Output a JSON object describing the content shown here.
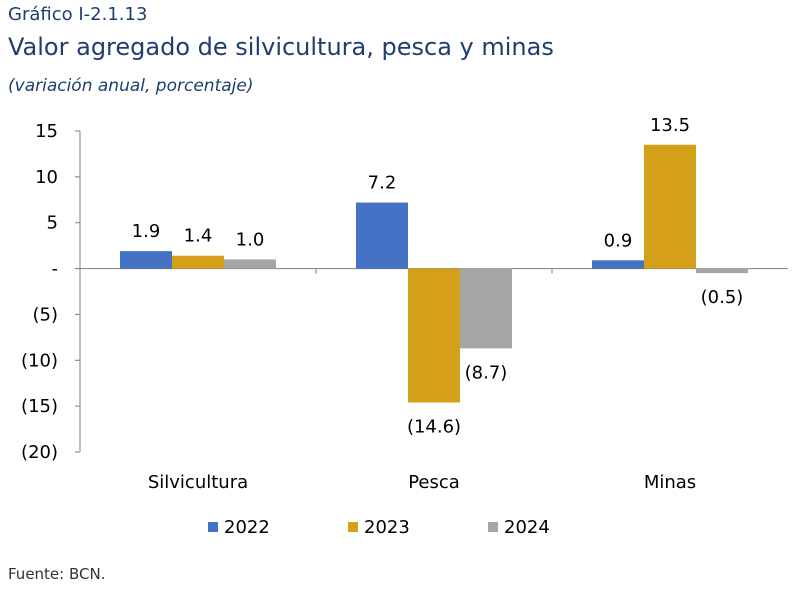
{
  "header": {
    "number": "Gráfico I-2.1.13",
    "title": "Valor agregado de silvicultura, pesca y minas",
    "subtitle": "(variación anual, porcentaje)"
  },
  "footer": {
    "source": "Fuente: BCN."
  },
  "chart_data": {
    "type": "bar",
    "title": "Valor agregado de silvicultura, pesca y minas",
    "subtitle": "(variación anual, porcentaje)",
    "categories": [
      "Silvicultura",
      "Pesca",
      "Minas"
    ],
    "series": [
      {
        "name": "2022",
        "values": [
          1.9,
          7.2,
          0.9
        ],
        "labels": [
          "1.9",
          "7.2",
          "0.9"
        ],
        "color": "#4472c4"
      },
      {
        "name": "2023",
        "values": [
          1.4,
          -14.6,
          13.5
        ],
        "labels": [
          "1.4",
          "(14.6)",
          "13.5"
        ],
        "color": "#d4a017"
      },
      {
        "name": "2024",
        "values": [
          1.0,
          -8.7,
          -0.5
        ],
        "labels": [
          "1.0",
          "(8.7)",
          "(0.5)"
        ],
        "color": "#a5a5a5"
      }
    ],
    "ylim": [
      -20,
      15
    ],
    "yticks": [
      15,
      10,
      5,
      0,
      -5,
      -10,
      -15,
      -20
    ],
    "ytick_labels": [
      "15",
      "10",
      "5",
      "-",
      "(5)",
      "(10)",
      "(15)",
      "(20)"
    ],
    "legend_position": "bottom",
    "grid": false
  }
}
